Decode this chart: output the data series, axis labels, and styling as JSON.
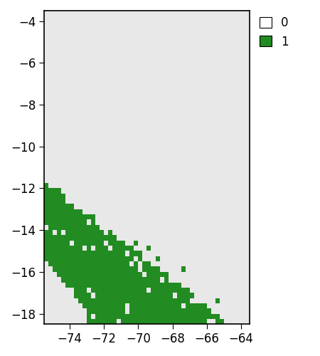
{
  "xlim": [
    -75.5,
    -63.5
  ],
  "ylim": [
    -18.5,
    -3.5
  ],
  "xticks": [
    -74,
    -72,
    -70,
    -68,
    -66,
    -64
  ],
  "yticks": [
    -18,
    -16,
    -14,
    -12,
    -10,
    -8,
    -6,
    -4
  ],
  "bg_color": "#E8E8E8",
  "green_color": "#228B22",
  "white_legend_color": "#E8E8E8",
  "cell_size": 0.25,
  "figsize": [
    4.5,
    5.0
  ],
  "dpi": 100
}
